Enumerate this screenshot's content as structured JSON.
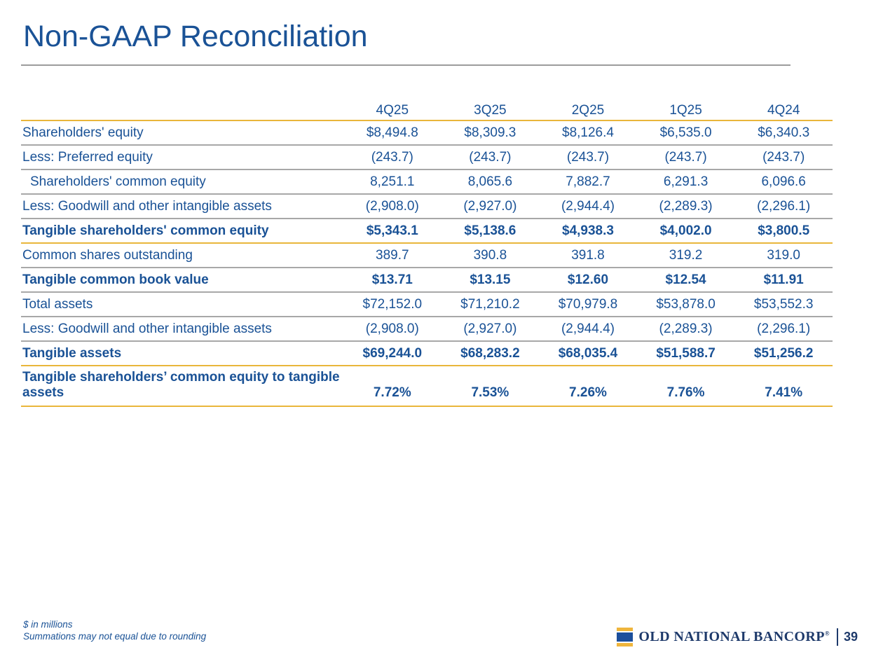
{
  "slide": {
    "title": "Non-GAAP Reconciliation",
    "footnotes": [
      "$ in millions",
      "Summations may not equal due to rounding"
    ],
    "page_number": "39",
    "logo_text": "OLD NATIONAL BANCORP",
    "logo_reg": "®"
  },
  "colors": {
    "text_blue": "#1A5296",
    "gold_rule": "#E9B63B",
    "gray_rule": "#A8A8A8",
    "title_rule": "#9C9C9C",
    "logo_navy": "#1E3A6B",
    "logo_blue": "#1C4F9C",
    "logo_gold": "#EFB53C"
  },
  "chart_data": {
    "type": "table",
    "title": "Non-GAAP Reconciliation",
    "categories": [
      "4Q25",
      "3Q25",
      "2Q25",
      "1Q25",
      "4Q24"
    ],
    "series": [
      {
        "name": "Shareholders' equity",
        "values": [
          "$8,494.8",
          "$8,309.3",
          "$8,126.4",
          "$6,535.0",
          "$6,340.3"
        ]
      },
      {
        "name": "Less: Preferred equity",
        "values": [
          "(243.7)",
          "(243.7)",
          "(243.7)",
          "(243.7)",
          "(243.7)"
        ]
      },
      {
        "name": "Shareholders' common equity",
        "values": [
          "8,251.1",
          "8,065.6",
          "7,882.7",
          "6,291.3",
          "6,096.6"
        ]
      },
      {
        "name": "Less: Goodwill and other intangible assets",
        "values": [
          "(2,908.0)",
          "(2,927.0)",
          "(2,944.4)",
          "(2,289.3)",
          "(2,296.1)"
        ]
      },
      {
        "name": "Tangible shareholders' common equity",
        "values": [
          "$5,343.1",
          "$5,138.6",
          "$4,938.3",
          "$4,002.0",
          "$3,800.5"
        ]
      },
      {
        "name": "Common shares outstanding",
        "values": [
          "389.7",
          "390.8",
          "391.8",
          "319.2",
          "319.0"
        ]
      },
      {
        "name": "Tangible common book value",
        "values": [
          "$13.71",
          "$13.15",
          "$12.60",
          "$12.54",
          "$11.91"
        ]
      },
      {
        "name": "Total assets",
        "values": [
          "$72,152.0",
          "$71,210.2",
          "$70,979.8",
          "$53,878.0",
          "$53,552.3"
        ]
      },
      {
        "name": "Less: Goodwill and other intangible assets",
        "values": [
          "(2,908.0)",
          "(2,927.0)",
          "(2,944.4)",
          "(2,289.3)",
          "(2,296.1)"
        ]
      },
      {
        "name": "Tangible assets",
        "values": [
          "$69,244.0",
          "$68,283.2",
          "$68,035.4",
          "$51,588.7",
          "$51,256.2"
        ]
      },
      {
        "name": "Tangible shareholders’ common equity to tangible assets",
        "values": [
          "7.72%",
          "7.53%",
          "7.26%",
          "7.76%",
          "7.41%"
        ]
      }
    ]
  },
  "table": {
    "header_label": "",
    "columns": [
      "4Q25",
      "3Q25",
      "2Q25",
      "1Q25",
      "4Q24"
    ],
    "rows": [
      {
        "label": "Shareholders' equity",
        "values": [
          "$8,494.8",
          "$8,309.3",
          "$8,126.4",
          "$6,535.0",
          "$6,340.3"
        ],
        "style": "normal",
        "rule": "gray"
      },
      {
        "label": "Less: Preferred equity",
        "values": [
          "(243.7)",
          "(243.7)",
          "(243.7)",
          "(243.7)",
          "(243.7)"
        ],
        "style": "normal",
        "rule": "gray"
      },
      {
        "label": "Shareholders' common equity",
        "values": [
          "8,251.1",
          "8,065.6",
          "7,882.7",
          "6,291.3",
          "6,096.6"
        ],
        "style": "indent",
        "rule": "gray"
      },
      {
        "label": "Less: Goodwill and other intangible assets",
        "values": [
          "(2,908.0)",
          "(2,927.0)",
          "(2,944.4)",
          "(2,289.3)",
          "(2,296.1)"
        ],
        "style": "normal",
        "rule": "gray"
      },
      {
        "label": "Tangible shareholders' common equity",
        "values": [
          "$5,343.1",
          "$5,138.6",
          "$4,938.3",
          "$4,002.0",
          "$3,800.5"
        ],
        "style": "bold",
        "rule": "gold"
      },
      {
        "label": "Common shares outstanding",
        "values": [
          "389.7",
          "390.8",
          "391.8",
          "319.2",
          "319.0"
        ],
        "style": "normal",
        "rule": "gray"
      },
      {
        "label": "Tangible common book value",
        "values": [
          "$13.71",
          "$13.15",
          "$12.60",
          "$12.54",
          "$11.91"
        ],
        "style": "bold",
        "rule": "gray"
      },
      {
        "label": "Total assets",
        "values": [
          "$72,152.0",
          "$71,210.2",
          "$70,979.8",
          "$53,878.0",
          "$53,552.3"
        ],
        "style": "normal",
        "rule": "gray"
      },
      {
        "label": "Less: Goodwill and other intangible assets",
        "values": [
          "(2,908.0)",
          "(2,927.0)",
          "(2,944.4)",
          "(2,289.3)",
          "(2,296.1)"
        ],
        "style": "normal",
        "rule": "gray"
      },
      {
        "label": "Tangible assets",
        "values": [
          "$69,244.0",
          "$68,283.2",
          "$68,035.4",
          "$51,588.7",
          "$51,256.2"
        ],
        "style": "bold",
        "rule": "gold"
      },
      {
        "label": "Tangible shareholders’ common equity to tangible assets",
        "values": [
          "7.72%",
          "7.53%",
          "7.26%",
          "7.76%",
          "7.41%"
        ],
        "style": "bold-tall",
        "rule": "gold"
      }
    ]
  }
}
